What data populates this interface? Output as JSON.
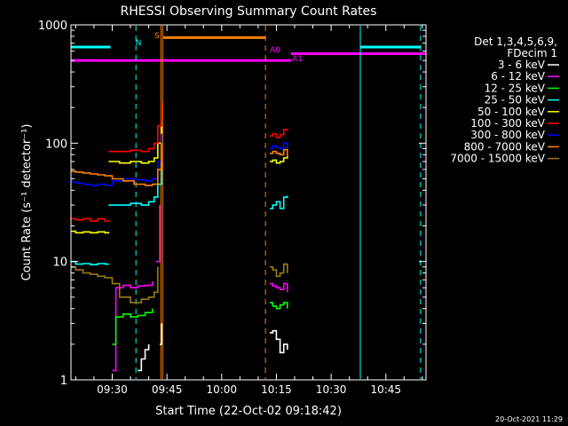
{
  "chart_data": {
    "type": "line",
    "title": "RHESSI Observing Summary Count Rates",
    "xlabel": "Start Time (22-Oct-02 09:18:42)",
    "ylabel": "Count Rate (s⁻¹ detector⁻¹)",
    "yscale": "log",
    "ylim": [
      1,
      1000
    ],
    "xlim": [
      "09:18:42",
      "10:56:00"
    ],
    "x_ticks": [
      "09:30",
      "09:45",
      "10:00",
      "10:15",
      "10:30",
      "10:45"
    ],
    "y_ticks": [
      "1",
      "10",
      "100",
      "1000"
    ],
    "grid": false,
    "legend_header": [
      "Det 1,3,4,5,6,9,",
      "FDecim 1"
    ],
    "legend_position": "right",
    "timestamp": "20-Oct-2021 11:29",
    "series": [
      {
        "name": "3 - 6 keV",
        "color": "#ffffff",
        "segments": [
          {
            "x": [
              "09:37:00",
              "09:38:00",
              "09:39:00",
              "09:40:00"
            ],
            "y": [
              1.2,
              1.5,
              1.8,
              2.0
            ]
          },
          {
            "x": [
              "09:43:00",
              "09:43:30"
            ],
            "y": [
              2.0,
              3.0
            ]
          },
          {
            "x": [
              "10:13:10",
              "10:14:00",
              "10:15:00",
              "10:16:00",
              "10:17:00",
              "10:18:00"
            ],
            "y": [
              2.5,
              2.6,
              2.2,
              1.7,
              2.0,
              1.8
            ]
          }
        ]
      },
      {
        "name": "6 - 12 keV",
        "color": "#ff00ff",
        "segments": [
          {
            "x": [
              "09:30:00",
              "09:31:00",
              "09:33:00",
              "09:35:00",
              "09:37:00",
              "09:39:00",
              "09:41:00"
            ],
            "y": [
              1.2,
              6.0,
              6.3,
              6.0,
              6.2,
              6.3,
              6.8
            ]
          },
          {
            "x": [
              "09:42:00",
              "09:43:00"
            ],
            "y": [
              10,
              30
            ]
          },
          {
            "x": [
              "10:13:10",
              "10:14:00",
              "10:15:00",
              "10:16:00",
              "10:17:00",
              "10:18:00"
            ],
            "y": [
              6.5,
              6.2,
              6.0,
              5.8,
              6.5,
              5.5
            ]
          }
        ]
      },
      {
        "name": "12 - 25 keV",
        "color": "#00ff00",
        "segments": [
          {
            "x": [
              "09:30:00",
              "09:31:00",
              "09:33:00",
              "09:35:00",
              "09:37:00",
              "09:39:00",
              "09:41:00"
            ],
            "y": [
              2.0,
              3.4,
              3.6,
              3.4,
              3.5,
              3.7,
              4.0
            ]
          },
          {
            "x": [
              "10:13:10",
              "10:14:00",
              "10:15:00",
              "10:16:00",
              "10:17:00",
              "10:18:00"
            ],
            "y": [
              4.5,
              4.2,
              4.0,
              4.3,
              4.5,
              4.0
            ]
          }
        ]
      },
      {
        "name": "25 - 50 keV",
        "color": "#00ffff",
        "segments": [
          {
            "x": [
              "09:18:42",
              "09:20:00",
              "09:22:00",
              "09:24:00",
              "09:26:00",
              "09:28:00",
              "09:29:00"
            ],
            "y": [
              10,
              9.5,
              9.6,
              9.4,
              9.6,
              9.5,
              9.6
            ]
          },
          {
            "x": [
              "09:29:00",
              "09:32:00",
              "09:35:00",
              "09:38:00",
              "09:40:00",
              "09:41:30",
              "09:42:30",
              "09:43:30"
            ],
            "y": [
              30,
              30,
              31,
              30,
              32,
              35,
              45,
              80
            ]
          },
          {
            "x": [
              "10:13:10",
              "10:14:00",
              "10:15:00",
              "10:16:00",
              "10:17:00",
              "10:18:00"
            ],
            "y": [
              28,
              30,
              32,
              28,
              35,
              36
            ]
          }
        ]
      },
      {
        "name": "50 - 100 keV",
        "color": "#ffff00",
        "segments": [
          {
            "x": [
              "09:18:42",
              "09:20:00",
              "09:22:00",
              "09:24:00",
              "09:26:00",
              "09:28:00",
              "09:29:00"
            ],
            "y": [
              18,
              17.5,
              17.8,
              17.5,
              17.8,
              17.5,
              17.8
            ]
          },
          {
            "x": [
              "09:29:00",
              "09:32:00",
              "09:35:00",
              "09:38:00",
              "09:40:00",
              "09:41:30",
              "09:42:30",
              "09:43:30"
            ],
            "y": [
              70,
              68,
              70,
              68,
              70,
              75,
              100,
              150
            ]
          },
          {
            "x": [
              "10:13:10",
              "10:14:00",
              "10:15:00",
              "10:16:00",
              "10:17:00",
              "10:18:00"
            ],
            "y": [
              70,
              72,
              68,
              70,
              75,
              78
            ]
          }
        ]
      },
      {
        "name": "100 - 300 keV",
        "color": "#ff0000",
        "segments": [
          {
            "x": [
              "09:18:42",
              "09:20:00",
              "09:22:00",
              "09:24:00",
              "09:26:00",
              "09:28:00",
              "09:29:00"
            ],
            "y": [
              23,
              22.5,
              23,
              22,
              23,
              22,
              22.5
            ]
          },
          {
            "x": [
              "09:29:00",
              "09:32:00",
              "09:35:00",
              "09:38:00",
              "09:40:00",
              "09:41:30",
              "09:42:30",
              "09:43:30"
            ],
            "y": [
              85,
              85,
              87,
              85,
              90,
              100,
              140,
              220
            ]
          },
          {
            "x": [
              "10:13:10",
              "10:14:00",
              "10:15:00",
              "10:16:00",
              "10:17:00",
              "10:18:00"
            ],
            "y": [
              115,
              120,
              112,
              118,
              130,
              128
            ]
          }
        ]
      },
      {
        "name": "300 - 800 keV",
        "color": "#0000ff",
        "segments": [
          {
            "x": [
              "09:18:42",
              "09:20:00",
              "09:22:00",
              "09:24:00",
              "09:26:00",
              "09:28:00",
              "09:30:00",
              "09:33:00",
              "09:36:00",
              "09:39:00",
              "09:41:00",
              "09:42:30",
              "09:43:30"
            ],
            "y": [
              47,
              46,
              45,
              44,
              45,
              44,
              48,
              50,
              49,
              48,
              50,
              70,
              120
            ]
          },
          {
            "x": [
              "10:13:10",
              "10:14:00",
              "10:15:00",
              "10:16:00",
              "10:17:00",
              "10:18:00"
            ],
            "y": [
              90,
              95,
              92,
              90,
              100,
              88
            ]
          }
        ]
      },
      {
        "name": "800 - 7000 keV",
        "color": "#ff8000",
        "segments": [
          {
            "x": [
              "09:18:42",
              "09:20:00",
              "09:22:00",
              "09:24:00",
              "09:26:00",
              "09:28:00",
              "09:30:00",
              "09:33:00",
              "09:36:00",
              "09:39:00",
              "09:41:00",
              "09:42:30",
              "09:43:30"
            ],
            "y": [
              58,
              57,
              56,
              55,
              54,
              53,
              50,
              48,
              45,
              44,
              45,
              60,
              100
            ]
          },
          {
            "x": [
              "10:13:10",
              "10:14:00",
              "10:15:00",
              "10:16:00",
              "10:17:00",
              "10:18:00"
            ],
            "y": [
              82,
              85,
              82,
              80,
              88,
              78
            ]
          }
        ]
      },
      {
        "name": "7000 - 15000 keV",
        "color": "#9c7c0c",
        "segments": [
          {
            "x": [
              "09:18:42",
              "09:20:00",
              "09:22:00",
              "09:24:00",
              "09:26:00",
              "09:28:00",
              "09:30:00",
              "09:32:00",
              "09:35:00",
              "09:38:00",
              "09:40:00",
              "09:41:30",
              "09:42:30"
            ],
            "y": [
              9.0,
              8.5,
              8.0,
              7.8,
              7.5,
              7.3,
              6.5,
              5.0,
              4.5,
              4.8,
              5.0,
              5.5,
              9.0
            ]
          },
          {
            "x": [
              "10:13:10",
              "10:14:00",
              "10:15:00",
              "10:16:00",
              "10:17:00",
              "10:18:00"
            ],
            "y": [
              9.0,
              8.5,
              7.5,
              8.0,
              9.5,
              8.0
            ]
          }
        ]
      }
    ],
    "state_bars": [
      {
        "label": "N",
        "color": "#00ffff",
        "y": 650,
        "segments": [
          [
            "09:18:42",
            "09:29:30"
          ],
          [
            "10:38:00",
            "10:54:30"
          ]
        ]
      },
      {
        "label": "S",
        "color": "#ff8000",
        "y": 780,
        "segments": [
          [
            "09:44:00",
            "10:12:00"
          ]
        ]
      },
      {
        "label": "A0",
        "color": "#ff00ff",
        "y": 570,
        "segments": [
          [
            "10:19:00",
            "10:56:00"
          ]
        ]
      },
      {
        "label": "A1",
        "color": "#ff00ff",
        "y": 500,
        "segments": [
          [
            "09:18:42",
            "10:19:00"
          ]
        ]
      }
    ],
    "markers": [
      {
        "time": "09:18:42",
        "color": "#00ffff",
        "style": "solid"
      },
      {
        "time": "09:36:30",
        "color": "#00ffff",
        "style": "dashed"
      },
      {
        "time": "09:43:20",
        "color": "#ff8000",
        "style": "solid"
      },
      {
        "time": "09:43:50",
        "color": "#ff8000",
        "style": "solid"
      },
      {
        "time": "10:12:00",
        "color": "#ff8000",
        "style": "dashed"
      },
      {
        "time": "10:38:00",
        "color": "#00ffff",
        "style": "solid"
      },
      {
        "time": "10:54:30",
        "color": "#00ffff",
        "style": "dashed"
      }
    ]
  }
}
